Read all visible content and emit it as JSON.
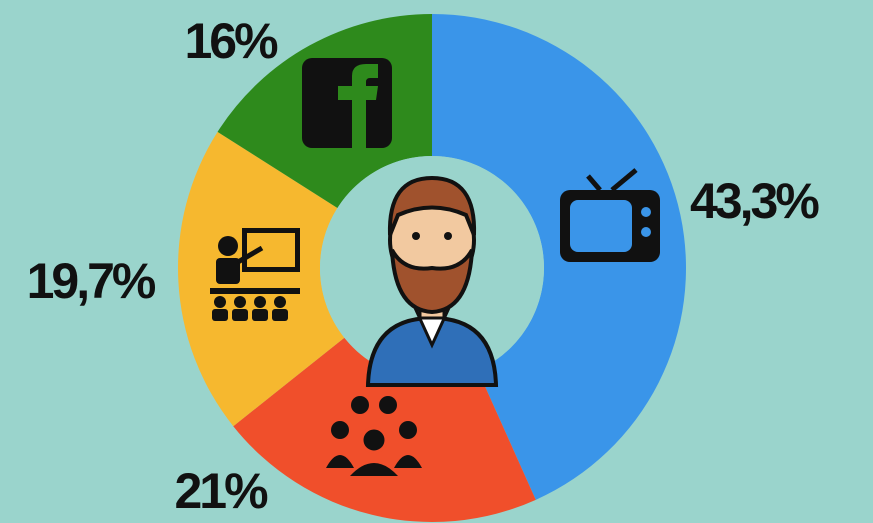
{
  "chart_data": {
    "type": "pie",
    "donut": true,
    "values": [
      43.3,
      21,
      19.7,
      16
    ],
    "value_labels": [
      "43,3%",
      "21%",
      "19,7%",
      "16%"
    ],
    "colors": [
      "#3a95e9",
      "#f04f2b",
      "#f6b82f",
      "#2e8a1c"
    ]
  }
}
